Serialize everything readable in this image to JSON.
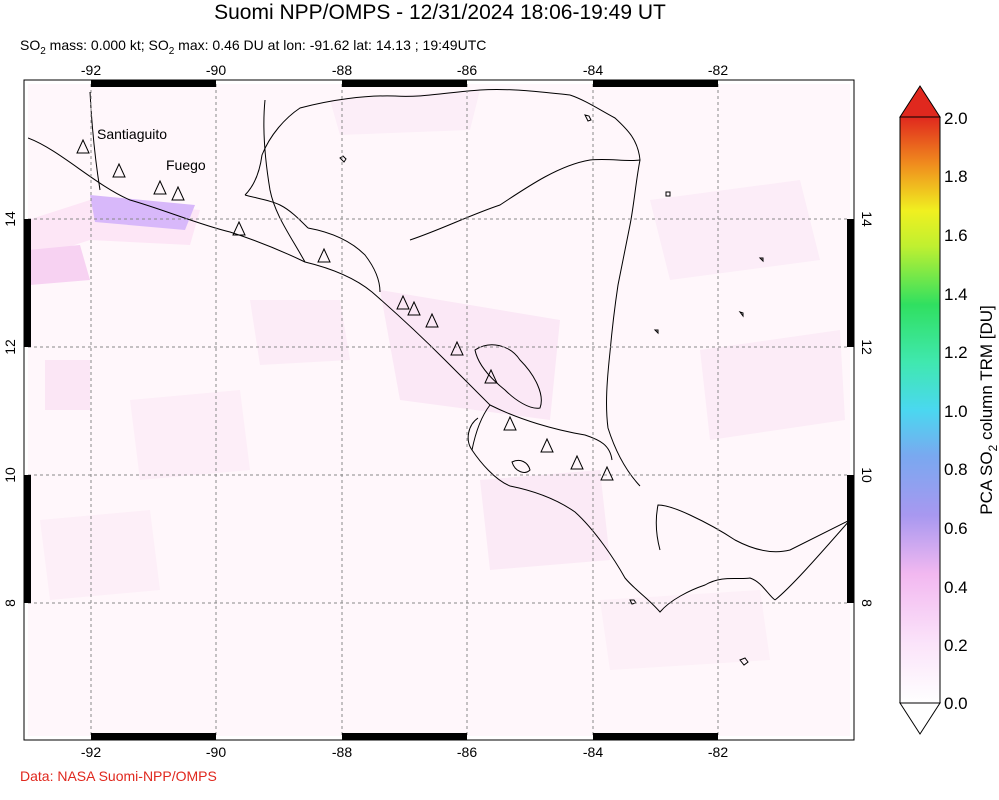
{
  "title": "Suomi NPP/OMPS - 12/31/2024 18:06-19:49 UT",
  "subtitle": {
    "so2_a": "SO",
    "sub2_a": "2",
    "mass": " mass: 0.000 kt; SO",
    "sub2_b": "2",
    "rest": " max: 0.46 DU at lon: -91.62 lat: 14.13 ; 19:49UTC"
  },
  "credit": "Data: NASA Suomi-NPP/OMPS",
  "map": {
    "lon_ticks": [
      "-92",
      "-90",
      "-88",
      "-86",
      "-84",
      "-82"
    ],
    "lat_ticks": [
      "14",
      "12",
      "10",
      "8"
    ],
    "volcano_labels": [
      "Santiaguito",
      "Fuego"
    ]
  },
  "colorbar": {
    "label_main": "PCA SO",
    "label_sub": "2",
    "label_rest": " column TRM [DU]",
    "ticks": [
      "2.0",
      "1.8",
      "1.6",
      "1.4",
      "1.2",
      "1.0",
      "0.8",
      "0.6",
      "0.4",
      "0.2",
      "0.0"
    ],
    "colors": [
      "#ffffff",
      "#f7c6f5",
      "#8c8cf0",
      "#4ad8f0",
      "#30e060",
      "#f0f020",
      "#f08c1e",
      "#e0281e"
    ]
  }
}
